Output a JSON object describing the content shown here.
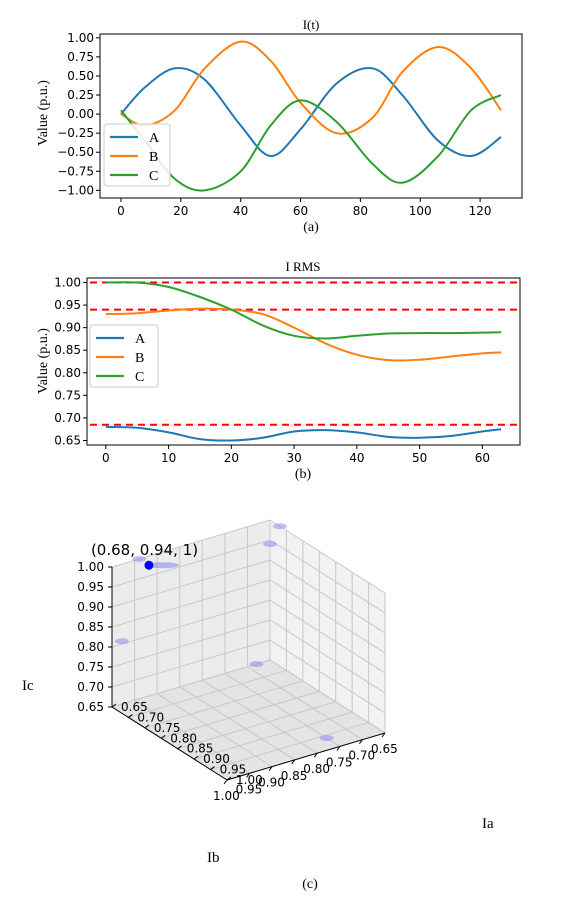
{
  "colors": {
    "A": "#1f77b4",
    "B": "#ff7f0e",
    "C": "#2ca02c",
    "ref": "#ff0000",
    "point": "#0000ff",
    "trail": "#8c8cf0"
  },
  "chart_data": [
    {
      "type": "line",
      "title": "I(t)",
      "ylabel": "Value (p.u.)",
      "caption": "(a)",
      "xlim": [
        -7,
        134
      ],
      "ylim": [
        -1.1,
        1.05
      ],
      "xticks": [
        "0",
        "20",
        "40",
        "60",
        "80",
        "100",
        "120"
      ],
      "yticks": [
        "1.00",
        "0.75",
        "0.50",
        "0.25",
        "0.00",
        "−0.25",
        "−0.50",
        "−0.75",
        "−1.00"
      ],
      "legend": {
        "position": "lower-left",
        "entries": [
          "A",
          "B",
          "C"
        ]
      },
      "series": [
        {
          "name": "A",
          "x": [
            0,
            8,
            18,
            28,
            40,
            50,
            60,
            72,
            84,
            94,
            106,
            117,
            127
          ],
          "y": [
            0.0,
            0.35,
            0.6,
            0.45,
            -0.15,
            -0.55,
            -0.2,
            0.4,
            0.6,
            0.25,
            -0.35,
            -0.55,
            -0.3
          ]
        },
        {
          "name": "B",
          "x": [
            0,
            8,
            18,
            28,
            40,
            50,
            60,
            72,
            84,
            94,
            106,
            117,
            127
          ],
          "y": [
            0.0,
            -0.15,
            0.05,
            0.6,
            0.95,
            0.7,
            0.15,
            -0.25,
            -0.05,
            0.55,
            0.88,
            0.6,
            0.05
          ]
        },
        {
          "name": "C",
          "x": [
            0,
            8,
            18,
            28,
            40,
            50,
            60,
            72,
            84,
            94,
            106,
            117,
            127
          ],
          "y": [
            0.05,
            -0.35,
            -0.85,
            -1.0,
            -0.75,
            -0.15,
            0.18,
            -0.1,
            -0.65,
            -0.9,
            -0.55,
            0.05,
            0.25
          ]
        }
      ]
    },
    {
      "type": "line",
      "title": "I RMS",
      "ylabel": "Value (p.u.)",
      "caption": "(b)",
      "xlim": [
        -3,
        66
      ],
      "ylim": [
        0.64,
        1.01
      ],
      "xticks": [
        "0",
        "10",
        "20",
        "30",
        "40",
        "50",
        "60"
      ],
      "yticks": [
        "1.00",
        "0.95",
        "0.90",
        "0.85",
        "0.80",
        "0.75",
        "0.70",
        "0.65"
      ],
      "reference_lines": [
        1.0,
        0.94,
        0.685
      ],
      "legend": {
        "position": "center-left",
        "entries": [
          "A",
          "B",
          "C"
        ]
      },
      "series": [
        {
          "name": "A",
          "x": [
            0,
            5,
            10,
            15,
            20,
            25,
            30,
            35,
            40,
            45,
            50,
            55,
            60,
            63
          ],
          "y": [
            0.68,
            0.678,
            0.668,
            0.653,
            0.65,
            0.656,
            0.67,
            0.673,
            0.668,
            0.658,
            0.656,
            0.66,
            0.67,
            0.675
          ]
        },
        {
          "name": "B",
          "x": [
            0,
            5,
            10,
            15,
            20,
            25,
            30,
            35,
            40,
            45,
            50,
            55,
            60,
            63
          ],
          "y": [
            0.93,
            0.932,
            0.938,
            0.942,
            0.94,
            0.93,
            0.9,
            0.865,
            0.84,
            0.828,
            0.829,
            0.836,
            0.843,
            0.845
          ]
        },
        {
          "name": "C",
          "x": [
            0,
            5,
            10,
            15,
            20,
            25,
            30,
            35,
            40,
            45,
            50,
            55,
            60,
            63
          ],
          "y": [
            1.0,
            1.0,
            0.99,
            0.968,
            0.94,
            0.905,
            0.882,
            0.876,
            0.882,
            0.887,
            0.888,
            0.888,
            0.889,
            0.89
          ]
        }
      ]
    },
    {
      "type": "scatter",
      "subtype": "3d",
      "caption": "(c)",
      "xlabel": "Ia",
      "ylabel": "Ib",
      "zlabel": "Ic",
      "range": [
        0.65,
        1.0
      ],
      "ticks": [
        "0.65",
        "0.70",
        "0.75",
        "0.80",
        "0.85",
        "0.90",
        "0.95",
        "1.00"
      ],
      "point": {
        "label": "(0.68, 0.94, 1)",
        "x": 0.68,
        "y": 0.94,
        "z": 1.0
      },
      "projections": [
        {
          "x": 0.65,
          "y": 0.65,
          "z": 0.94
        },
        {
          "x": 0.65,
          "y": 0.94,
          "z": 1.0
        },
        {
          "x": 0.68,
          "y": 0.65,
          "z": 1.0
        },
        {
          "x": 0.68,
          "y": 1.0,
          "z": 0.83
        },
        {
          "x": 0.96,
          "y": 0.75,
          "z": 0.65
        },
        {
          "x": 0.65,
          "y": 0.68,
          "z": 0.65
        }
      ]
    }
  ]
}
